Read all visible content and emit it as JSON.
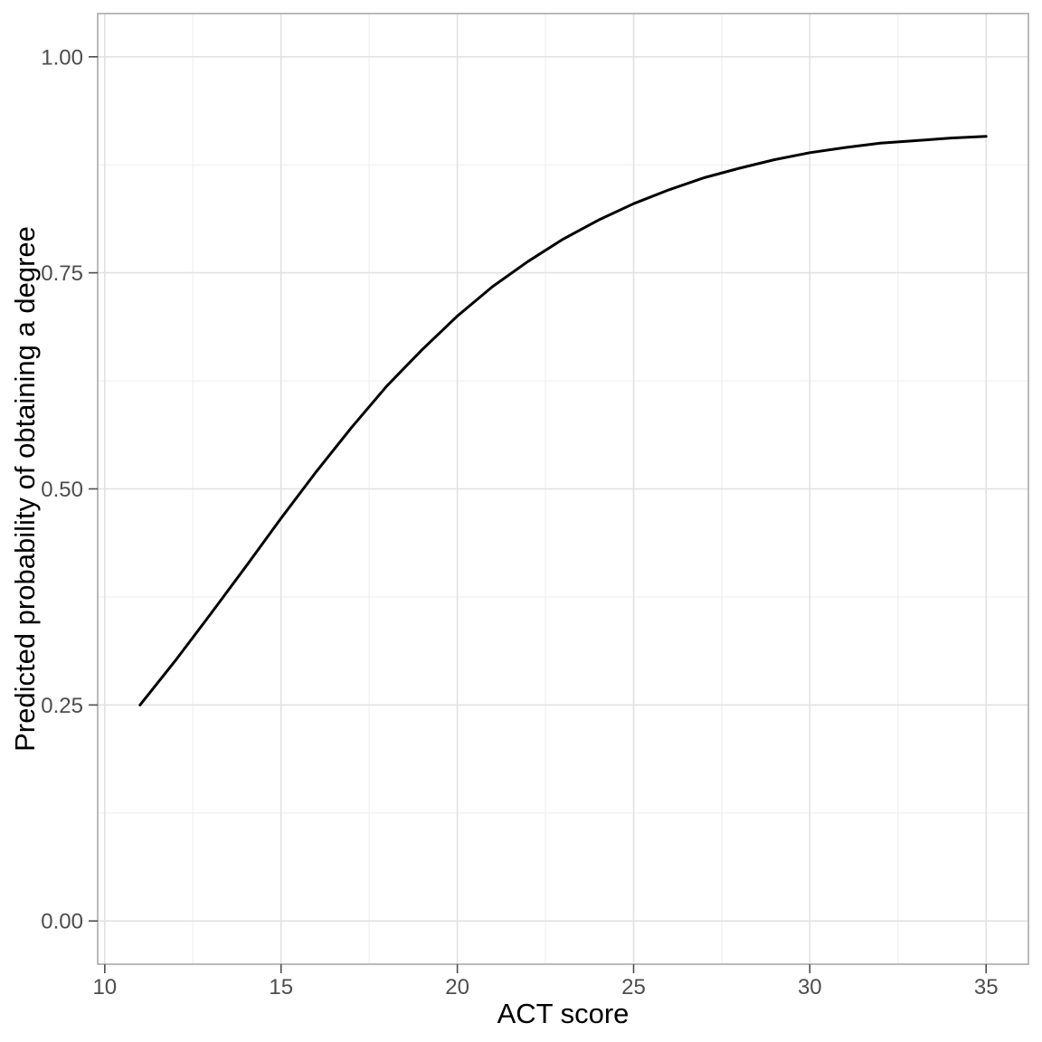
{
  "chart_data": {
    "type": "line",
    "title": "",
    "xlabel": "ACT score",
    "ylabel": "Predicted probability of obtaining a degree",
    "grid": "major-and-minor",
    "legend": "none",
    "x_axis": {
      "ticks": [
        10,
        15,
        20,
        25,
        30,
        35
      ],
      "tick_labels": [
        "10",
        "15",
        "20",
        "25",
        "30",
        "35"
      ],
      "minor_ticks": [
        12.5,
        17.5,
        22.5,
        27.5,
        32.5
      ],
      "lim": [
        9.8,
        36.2
      ]
    },
    "y_axis": {
      "tick_values": [
        0,
        0.25,
        0.5,
        0.75,
        1
      ],
      "tick_labels": [
        "0.00",
        "0.25",
        "0.50",
        "0.75",
        "1.00"
      ],
      "minor_ticks": [
        0.125,
        0.375,
        0.625,
        0.875
      ],
      "lim": [
        -0.05,
        1.05
      ]
    },
    "series": [
      {
        "name": "predicted-probability-curve",
        "color": "#000000",
        "x": [
          11,
          12,
          13,
          14,
          15,
          16,
          17,
          18,
          19,
          20,
          21,
          22,
          23,
          24,
          25,
          26,
          27,
          28,
          29,
          30,
          31,
          32,
          33,
          34,
          35
        ],
        "y": [
          0.25,
          0.301,
          0.355,
          0.41,
          0.466,
          0.52,
          0.571,
          0.619,
          0.661,
          0.7,
          0.734,
          0.763,
          0.789,
          0.811,
          0.83,
          0.846,
          0.86,
          0.871,
          0.881,
          0.889,
          0.895,
          0.9,
          0.903,
          0.906,
          0.908
        ]
      }
    ]
  },
  "theme": {
    "background": "#ffffff",
    "panel_background": "#ffffff",
    "panel_border": "#a9a9a9",
    "grid_major": "#e2e2e2",
    "grid_minor": "#efefef",
    "tick_mark": "#4d4d4d",
    "tick_label": "#4d4d4d",
    "axis_title": "#000000",
    "line_color": "#000000"
  }
}
